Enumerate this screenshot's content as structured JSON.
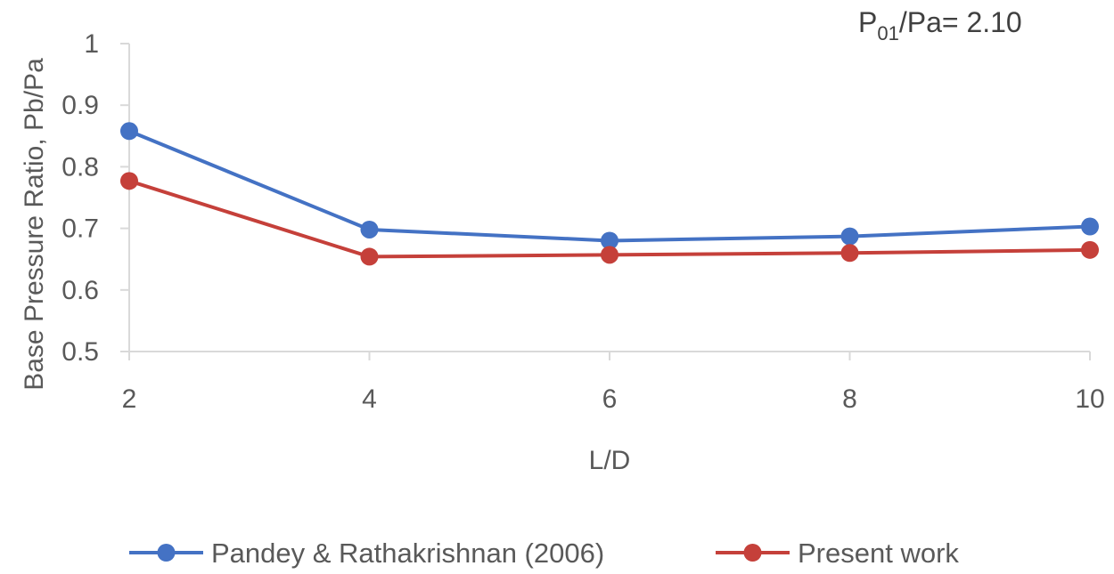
{
  "chart_data": {
    "type": "line",
    "title": "",
    "xlabel": "L/D",
    "ylabel": "Base Pressure Ratio, Pb/Pa",
    "x": [
      2,
      4,
      6,
      8,
      10
    ],
    "xlim": [
      2,
      10
    ],
    "ylim": [
      0.5,
      1
    ],
    "yticks": [
      0.5,
      0.6,
      0.7,
      0.8,
      0.9,
      1
    ],
    "ytick_labels": [
      "0.5",
      "0.6",
      "0.7",
      "0.8",
      "0.9",
      "1"
    ],
    "xtick_labels": [
      "2",
      "4",
      "6",
      "8",
      "10"
    ],
    "grid": false,
    "legend_position": "bottom",
    "annotation": {
      "main": "P",
      "subscript": "01",
      "rest": "/Pa= 2.10"
    },
    "series": [
      {
        "name": "Pandey & Rathakrishnan (2006)",
        "color": "#4472C4",
        "values": [
          0.858,
          0.698,
          0.68,
          0.687,
          0.703
        ]
      },
      {
        "name": "Present work",
        "color": "#C5403A",
        "values": [
          0.777,
          0.654,
          0.657,
          0.66,
          0.665
        ]
      }
    ]
  }
}
